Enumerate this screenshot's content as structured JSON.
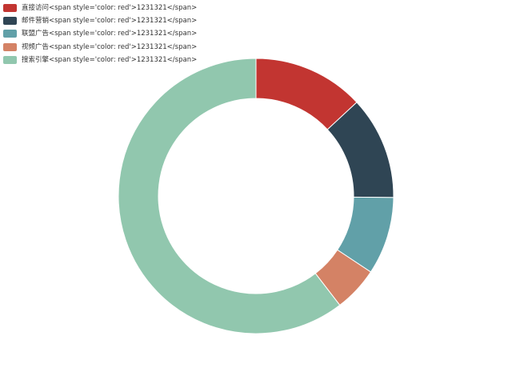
{
  "chart_data": {
    "type": "pie",
    "variant": "donut",
    "legend_position": "top-left",
    "series": [
      {
        "name": "",
        "data": [
          {
            "label": "直接访问<span style='color: red'>1231321</span>",
            "value": 335,
            "color": "#c23531"
          },
          {
            "label": "邮件营销<span style='color: red'>1231321</span>",
            "value": 310,
            "color": "#2f4554"
          },
          {
            "label": "联盟广告<span style='color: red'>1231321</span>",
            "value": 234,
            "color": "#61a0a8"
          },
          {
            "label": "视频广告<span style='color: red'>1231321</span>",
            "value": 135,
            "color": "#d48265"
          },
          {
            "label": "搜索引擎<span style='color: red'>1231321</span>",
            "value": 1548,
            "color": "#91c7ae"
          }
        ]
      }
    ]
  }
}
